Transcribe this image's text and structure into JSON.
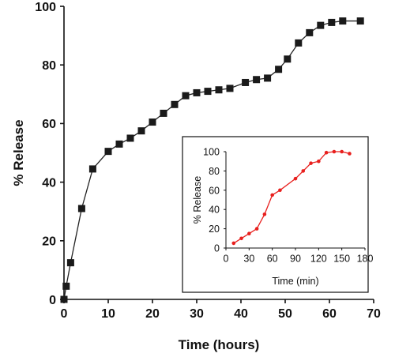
{
  "chart_data": [
    {
      "type": "line",
      "xlabel": "Time (hours)",
      "ylabel": "% Release",
      "xlim": [
        0,
        70
      ],
      "ylim": [
        0,
        100
      ],
      "xticks": [
        0,
        10,
        20,
        30,
        40,
        50,
        60,
        70
      ],
      "yticks": [
        0,
        20,
        40,
        60,
        80,
        100
      ],
      "grid": false,
      "marker": "square",
      "line_color": "#222222",
      "series": [
        {
          "x": [
            0,
            0.5,
            1.5,
            4,
            6.5,
            10,
            12.5,
            15,
            17.5,
            20,
            22.5,
            25,
            27.5,
            30,
            32.5,
            35,
            37.5,
            41,
            43.5,
            46,
            48.5,
            50.5,
            53,
            55.5,
            58,
            60.5,
            63,
            67
          ],
          "y": [
            0,
            4.5,
            12.5,
            31,
            44.5,
            50.5,
            53,
            55,
            57.5,
            60.5,
            63.5,
            66.5,
            69.5,
            70.5,
            71,
            71.5,
            72,
            74,
            75,
            75.5,
            78.5,
            82,
            87.5,
            91,
            93.5,
            94.5,
            95,
            95
          ]
        }
      ]
    },
    {
      "type": "line",
      "xlabel": "Time (min)",
      "ylabel": "% Release",
      "xlim": [
        0,
        180
      ],
      "ylim": [
        0,
        100
      ],
      "xticks": [
        0,
        30,
        60,
        90,
        120,
        150,
        180
      ],
      "yticks": [
        0,
        20,
        40,
        60,
        80,
        100
      ],
      "grid": false,
      "marker": "circle",
      "line_color": "#e8201e",
      "series": [
        {
          "x": [
            10,
            20,
            30,
            40,
            50,
            60,
            70,
            90,
            100,
            110,
            120,
            130,
            140,
            150,
            160
          ],
          "y": [
            5,
            10,
            15,
            20,
            35,
            55,
            60,
            72,
            80,
            88,
            90,
            99,
            100,
            100,
            98
          ]
        }
      ]
    }
  ]
}
